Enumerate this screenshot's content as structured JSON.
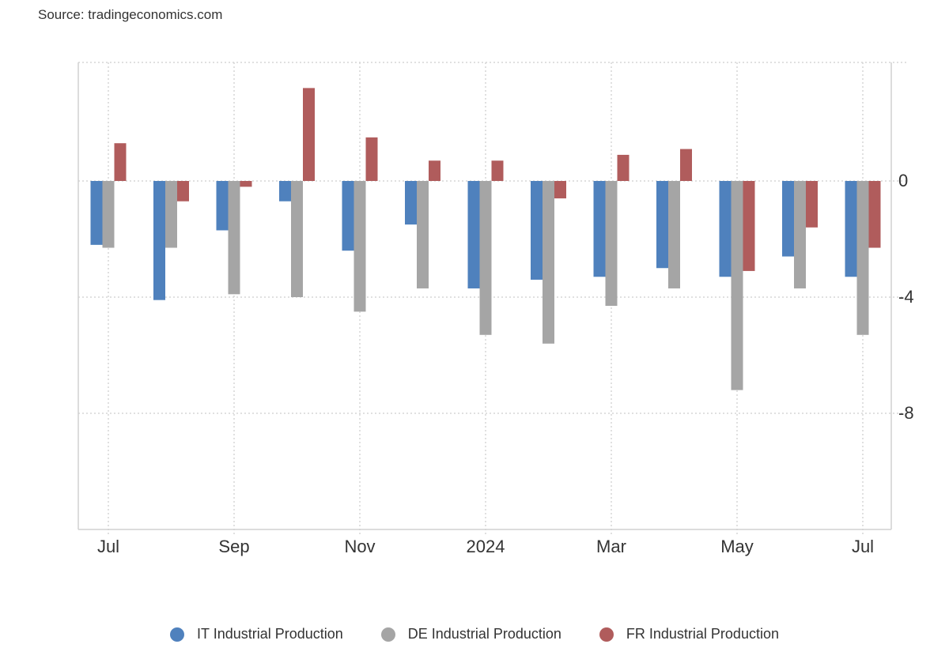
{
  "source": "Source: tradingeconomics.com",
  "chart_data": {
    "type": "bar",
    "categories": [
      "2023-07",
      "2023-08",
      "2023-09",
      "2023-10",
      "2023-11",
      "2023-12",
      "2024-01",
      "2024-02",
      "2024-03",
      "2024-04",
      "2024-05",
      "2024-06",
      "2024-07"
    ],
    "x_tick_labels": [
      "Jul",
      "Sep",
      "Nov",
      "2024",
      "Mar",
      "May",
      "Jul"
    ],
    "x_tick_categories": [
      "2023-07",
      "2023-09",
      "2023-11",
      "2024-01",
      "2024-03",
      "2024-05",
      "2024-07"
    ],
    "y_tick_labels": [
      "0",
      "-4",
      "-8"
    ],
    "y_ticks": [
      0,
      -4,
      -8
    ],
    "ylim": [
      -12,
      4
    ],
    "grid": true,
    "legend_position": "bottom",
    "series": [
      {
        "name": "IT Industrial Production",
        "color": "#4f81bd",
        "values": [
          -2.2,
          -4.1,
          -1.7,
          -0.7,
          -2.4,
          -1.5,
          -3.7,
          -3.4,
          -3.3,
          -3.0,
          -3.3,
          -2.6,
          -3.3
        ]
      },
      {
        "name": "DE Industrial Production",
        "color": "#a5a5a5",
        "values": [
          -2.3,
          -2.3,
          -3.9,
          -4.0,
          -4.5,
          -3.7,
          -5.3,
          -5.6,
          -4.3,
          -3.7,
          -7.2,
          -3.7,
          -5.3
        ]
      },
      {
        "name": "FR Industrial Production",
        "color": "#b05c5c",
        "values": [
          1.3,
          -0.7,
          -0.2,
          3.2,
          1.5,
          0.7,
          0.7,
          -0.6,
          0.9,
          1.1,
          -3.1,
          -1.6,
          -2.3
        ]
      }
    ]
  }
}
